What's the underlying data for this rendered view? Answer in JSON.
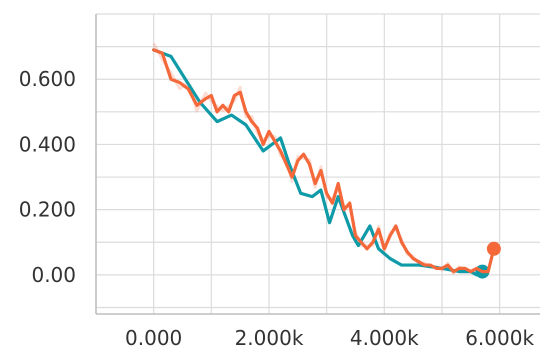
{
  "chart_data": {
    "type": "line",
    "title": "",
    "xlabel": "",
    "ylabel": "",
    "x_ticks": [
      "0.000",
      "2.000k",
      "4.000k",
      "6.000k"
    ],
    "x_tick_values": [
      0,
      2000,
      4000,
      6000
    ],
    "y_ticks": [
      "0.00",
      "0.200",
      "0.400",
      "0.600"
    ],
    "y_tick_values": [
      0,
      0.2,
      0.4,
      0.6
    ],
    "xlim": [
      -1000,
      6700
    ],
    "ylim": [
      -0.12,
      0.8
    ],
    "grid": true,
    "series": [
      {
        "color": "#0e9aa7",
        "x": [
          0,
          300,
          800,
          1100,
          1350,
          1600,
          1900,
          2200,
          2350,
          2550,
          2750,
          2900,
          3050,
          3200,
          3450,
          3550,
          3750,
          3900,
          4100,
          4300,
          4600,
          5000,
          5300,
          5500,
          5600,
          5700
        ],
        "y": [
          0.69,
          0.67,
          0.53,
          0.47,
          0.49,
          0.46,
          0.38,
          0.42,
          0.34,
          0.25,
          0.24,
          0.26,
          0.16,
          0.24,
          0.12,
          0.09,
          0.15,
          0.08,
          0.05,
          0.03,
          0.03,
          0.02,
          0.01,
          0.01,
          0.0,
          0.01
        ]
      },
      {
        "color": "#f4683a",
        "x": [
          0,
          150,
          300,
          450,
          600,
          750,
          900,
          1000,
          1100,
          1200,
          1300,
          1400,
          1500,
          1600,
          1700,
          1800,
          1900,
          2000,
          2100,
          2200,
          2300,
          2400,
          2500,
          2600,
          2700,
          2800,
          2900,
          3000,
          3100,
          3200,
          3300,
          3400,
          3500,
          3600,
          3700,
          3800,
          3900,
          4000,
          4100,
          4200,
          4300,
          4400,
          4500,
          4600,
          4700,
          4800,
          4900,
          5000,
          5100,
          5200,
          5300,
          5400,
          5500,
          5600,
          5700,
          5800,
          5900
        ],
        "y": [
          0.69,
          0.68,
          0.6,
          0.59,
          0.57,
          0.52,
          0.54,
          0.55,
          0.5,
          0.52,
          0.5,
          0.55,
          0.56,
          0.5,
          0.47,
          0.45,
          0.4,
          0.44,
          0.41,
          0.38,
          0.34,
          0.3,
          0.35,
          0.37,
          0.34,
          0.28,
          0.32,
          0.25,
          0.22,
          0.28,
          0.2,
          0.22,
          0.12,
          0.1,
          0.08,
          0.1,
          0.14,
          0.08,
          0.12,
          0.15,
          0.1,
          0.07,
          0.05,
          0.04,
          0.03,
          0.03,
          0.02,
          0.02,
          0.03,
          0.01,
          0.02,
          0.02,
          0.01,
          0.02,
          0.01,
          0.01,
          0.08
        ]
      }
    ]
  }
}
